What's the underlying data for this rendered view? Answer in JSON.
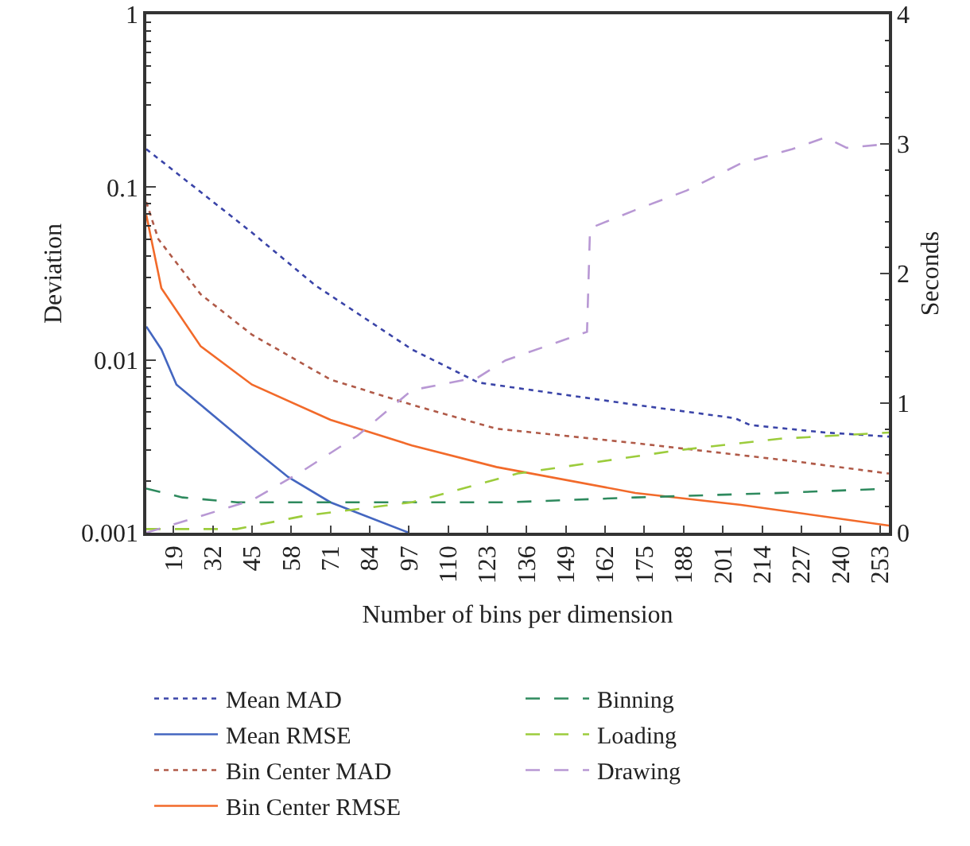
{
  "chart_data": {
    "type": "line",
    "xlabel": "Number of bins per dimension",
    "ylabel": "Deviation",
    "y2label": "Seconds",
    "log": "y",
    "grid": false,
    "legend": "bottom",
    "marker": "none",
    "xlim": [
      10,
      256
    ],
    "xticks": [
      19,
      32,
      45,
      58,
      71,
      84,
      97,
      110,
      123,
      136,
      149,
      162,
      175,
      188,
      201,
      214,
      227,
      240,
      253
    ],
    "ylim": [
      0.001,
      1
    ],
    "yticks": [
      0.001,
      0.01,
      0.1,
      1
    ],
    "y2lim": [
      0,
      4
    ],
    "y2ticks": [
      0,
      1,
      2,
      3,
      4
    ],
    "series": [
      {
        "name": "Mean MAD",
        "color": "#3a44a8",
        "line_style": "dotted",
        "x": [
          10,
          45,
          66,
          98,
          120,
          172,
          205,
          210,
          235,
          256
        ],
        "values": [
          0.166,
          0.0546,
          0.027,
          0.0115,
          0.0074,
          0.0055,
          0.0046,
          0.0042,
          0.0038,
          0.0036
        ]
      },
      {
        "name": "Mean RMSE",
        "color": "#4466c0",
        "line_style": "solid",
        "x": [
          10,
          15,
          20,
          36,
          46,
          57,
          71,
          97
        ],
        "values": [
          0.0156,
          0.0115,
          0.0072,
          0.0042,
          0.003,
          0.0021,
          0.0015,
          0.001
        ]
      },
      {
        "name": "Bin Center MAD",
        "color": "#b05a48",
        "line_style": "dotted",
        "x": [
          10,
          14,
          28,
          45,
          71,
          98,
          126,
          172,
          224,
          256
        ],
        "values": [
          0.082,
          0.05,
          0.024,
          0.014,
          0.0077,
          0.0055,
          0.004,
          0.0033,
          0.0026,
          0.0022
        ]
      },
      {
        "name": "Bin Center RMSE",
        "color": "#f26a2a",
        "line_style": "solid",
        "x": [
          10,
          15,
          28,
          45,
          71,
          98,
          126,
          172,
          207,
          256
        ],
        "values": [
          0.069,
          0.026,
          0.012,
          0.0072,
          0.0045,
          0.0032,
          0.0024,
          0.0017,
          0.00145,
          0.0011
        ]
      },
      {
        "name": "Binning",
        "color": "#2e8a5e",
        "line_style": "dashed",
        "x": [
          10,
          22,
          40,
          60,
          80,
          130,
          172,
          220,
          256
        ],
        "values": [
          0.0018,
          0.0016,
          0.0015,
          0.0015,
          0.0015,
          0.0015,
          0.0016,
          0.0017,
          0.0018
        ]
      },
      {
        "name": "Loading",
        "color": "#9ccc3c",
        "line_style": "dashed",
        "x": [
          10,
          40,
          62,
          98,
          133,
          168,
          186,
          220,
          256
        ],
        "values": [
          0.00105,
          0.00105,
          0.00125,
          0.0015,
          0.0022,
          0.0027,
          0.003,
          0.0035,
          0.0038
        ]
      },
      {
        "name": "Drawing",
        "color": "#b898d4",
        "line_style": "dashed",
        "axis": "y2",
        "x": [
          10,
          45,
          62,
          80,
          98,
          120,
          129,
          156,
          157,
          172,
          189,
          207,
          224,
          235,
          242,
          256
        ],
        "values": [
          0,
          0.25,
          0.48,
          0.75,
          1.1,
          1.2,
          1.33,
          1.55,
          2.35,
          2.49,
          2.64,
          2.85,
          2.96,
          3.05,
          2.97,
          3.0
        ]
      }
    ]
  }
}
